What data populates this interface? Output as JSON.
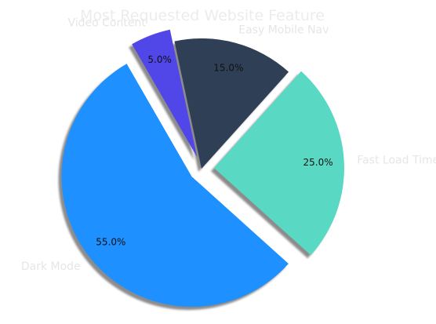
{
  "chart_data": {
    "type": "pie",
    "title": "Most Requested Website Feature",
    "categories": [
      "Dark Mode",
      "Fast Load Times",
      "Easy Mobile Nav",
      "Video Content"
    ],
    "values": [
      55,
      25,
      15,
      5
    ],
    "percent_labels": [
      "55.0%",
      "25.0%",
      "15.0%",
      "5.0%"
    ],
    "colors": [
      "#1e90ff",
      "#59d9c3",
      "#2f3f55",
      "#5146e8"
    ],
    "exploded": [
      true,
      true,
      false,
      true
    ],
    "shadow": true,
    "start_angle_deg": 120,
    "direction": "counterclockwise"
  }
}
